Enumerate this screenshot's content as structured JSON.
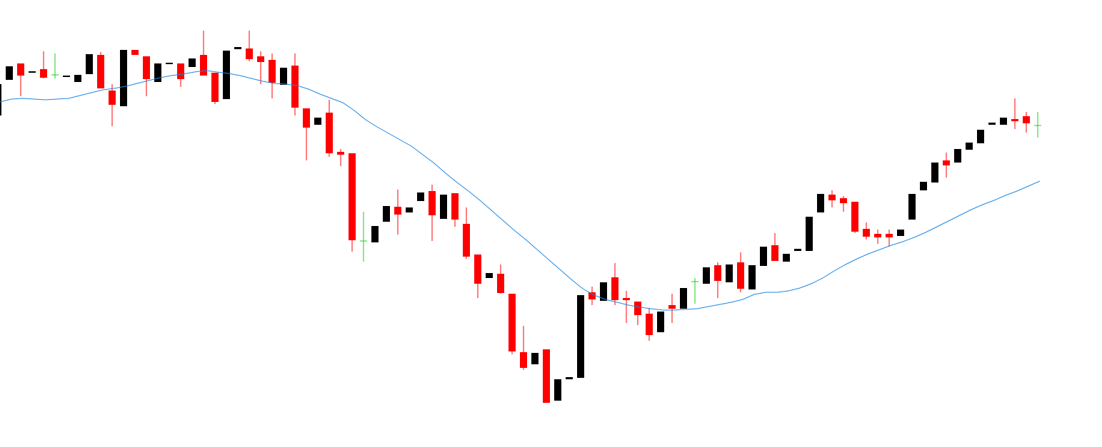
{
  "chart_data": {
    "type": "candlestick",
    "up_color": "#000000",
    "down_color": "#ff0000",
    "doji_color": "#22cc22",
    "ylim": [
      0,
      622
    ],
    "open": [
      460,
      510,
      533,
      521,
      525,
      517,
      515,
      507,
      518,
      545,
      495,
      473,
      552,
      543,
      507,
      532,
      533,
      528,
      545,
      520,
      483,
      553,
      554,
      543,
      538,
      503,
      530,
      470,
      447,
      464,
      409,
      407,
      284,
      282,
      311,
      332,
      324,
      340,
      354,
      315,
      351,
      308,
      265,
      232,
      238,
      210,
      128,
      111,
      132,
      60,
      90,
      92,
      212,
      200,
      233,
      204,
      199,
      182,
      156,
      194,
      189,
      227,
      224,
      250,
      226,
      254,
      216,
      249,
      278,
      255,
      270,
      270,
      324,
      349,
      344,
      339,
      301,
      294,
      294,
      291,
      314,
      355,
      366,
      397,
      394,
      412,
      421,
      447,
      447,
      455,
      459,
      446
    ],
    "high": [
      504,
      529,
      533,
      522,
      550,
      547,
      516,
      517,
      546,
      549,
      504,
      552,
      552,
      543,
      533,
      534,
      533,
      540,
      579,
      520,
      551,
      556,
      579,
      550,
      547,
      527,
      547,
      470,
      457,
      482,
      413,
      407,
      325,
      305,
      333,
      356,
      331,
      352,
      363,
      349,
      351,
      331,
      265,
      239,
      251,
      210,
      165,
      127,
      132,
      90,
      93,
      208,
      220,
      226,
      253,
      214,
      199,
      190,
      185,
      210,
      218,
      232,
      247,
      254,
      251,
      268,
      250,
      276,
      295,
      266,
      273,
      318,
      350,
      355,
      347,
      339,
      310,
      300,
      300,
      300,
      350,
      367,
      394,
      408,
      413,
      422,
      440,
      450,
      457,
      484,
      465,
      465
    ],
    "low": [
      460,
      510,
      487,
      521,
      512,
      512,
      515,
      507,
      518,
      498,
      445,
      473,
      545,
      487,
      507,
      532,
      500,
      528,
      516,
      476,
      483,
      553,
      536,
      504,
      484,
      503,
      460,
      397,
      447,
      402,
      389,
      269,
      255,
      282,
      311,
      293,
      324,
      340,
      284,
      315,
      304,
      259,
      204,
      232,
      210,
      125,
      103,
      111,
      57,
      60,
      90,
      92,
      194,
      200,
      194,
      169,
      166,
      144,
      156,
      169,
      189,
      196,
      224,
      204,
      226,
      212,
      216,
      249,
      256,
      255,
      270,
      270,
      324,
      331,
      325,
      295,
      286,
      280,
      276,
      291,
      314,
      355,
      366,
      373,
      394,
      412,
      421,
      447,
      447,
      441,
      436,
      429
    ],
    "close": [
      504,
      529,
      516,
      522,
      513,
      517,
      516,
      517,
      546,
      498,
      475,
      552,
      545,
      511,
      533,
      534,
      511,
      540,
      516,
      479,
      551,
      556,
      539,
      535,
      506,
      527,
      471,
      443,
      457,
      407,
      405,
      285,
      284,
      305,
      333,
      321,
      331,
      352,
      320,
      349,
      314,
      262,
      224,
      239,
      211,
      129,
      106,
      127,
      57,
      90,
      93,
      208,
      202,
      226,
      201,
      201,
      180,
      152,
      185,
      189,
      218,
      227,
      247,
      228,
      251,
      217,
      250,
      276,
      256,
      266,
      273,
      318,
      350,
      341,
      337,
      297,
      290,
      289,
      289,
      300,
      350,
      367,
      394,
      390,
      413,
      422,
      440,
      450,
      457,
      452,
      449,
      446
    ],
    "ma": {
      "color": "#1e88e5",
      "values": [
        479,
        483,
        484,
        483,
        482,
        483,
        484,
        488,
        492,
        496,
        498,
        501,
        505,
        509,
        513,
        516,
        518,
        521,
        523,
        521,
        519,
        516,
        512,
        508,
        505,
        504,
        502,
        497,
        490,
        484,
        478,
        467,
        454,
        444,
        435,
        426,
        417,
        405,
        393,
        379,
        366,
        354,
        341,
        327,
        313,
        299,
        286,
        272,
        258,
        244,
        230,
        217,
        208,
        202,
        198,
        194,
        191,
        189,
        187,
        187,
        188,
        189,
        192,
        195,
        198,
        202,
        209,
        212,
        212,
        214,
        218,
        224,
        232,
        242,
        251,
        259,
        266,
        272,
        278,
        283,
        289,
        296,
        304,
        312,
        320,
        328,
        335,
        341,
        348,
        354,
        361,
        368
      ]
    }
  }
}
